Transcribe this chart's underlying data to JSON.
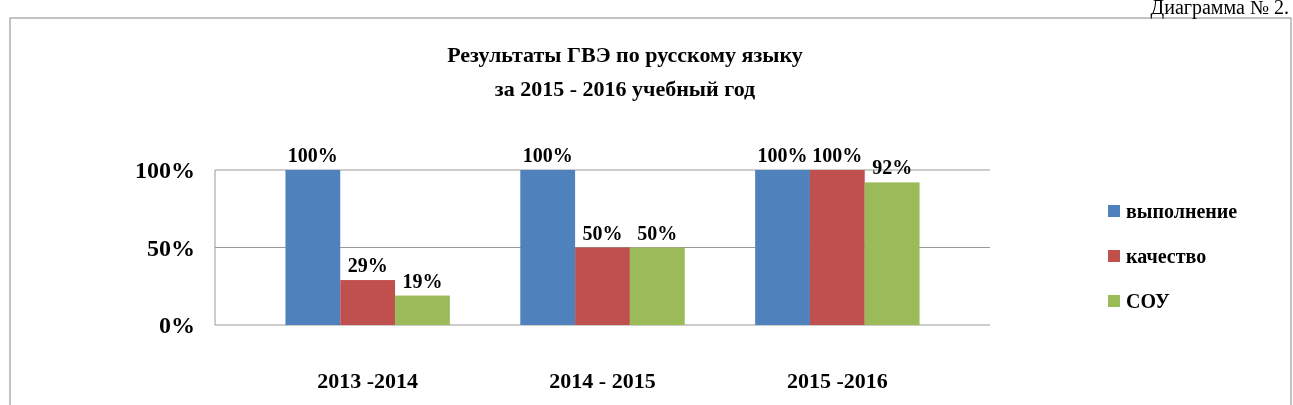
{
  "chart_data": {
    "type": "bar",
    "title": "Результаты ГВЭ по русскому языку\nза 2015 - 2016 учебный год",
    "annotations": [
      "Диаграмма № 2."
    ],
    "categories": [
      "2013 -2014",
      "2014 - 2015",
      "2015 -2016"
    ],
    "series": [
      {
        "name": "выполнение",
        "color": "#4f81bd",
        "values": [
          100,
          100,
          100
        ],
        "value_labels": [
          "100%",
          "100%",
          "100%"
        ]
      },
      {
        "name": "качество",
        "color": "#c0504d",
        "values": [
          29,
          50,
          100
        ],
        "value_labels": [
          "29%",
          "50%",
          "100%"
        ]
      },
      {
        "name": "СОУ",
        "color": "#9bbb59",
        "values": [
          19,
          50,
          92
        ],
        "value_labels": [
          "19%",
          "50%",
          "92%"
        ]
      }
    ],
    "ylim": [
      0,
      100
    ],
    "yticks": [
      {
        "value": 0,
        "label": "0%"
      },
      {
        "value": 50,
        "label": "50%"
      },
      {
        "value": 100,
        "label": "100%"
      }
    ],
    "grid": "y",
    "legend": "right"
  }
}
